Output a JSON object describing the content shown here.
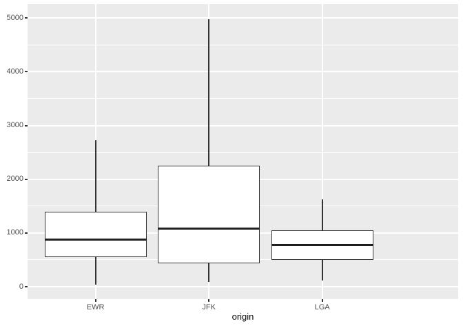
{
  "chart_data": {
    "type": "boxplot",
    "title": "",
    "xlabel": "origin",
    "ylabel": "",
    "categories": [
      "EWR",
      "JFK",
      "LGA"
    ],
    "y_ticks": [
      0,
      1000,
      2000,
      3000,
      4000,
      5000
    ],
    "y_tick_labels": [
      "0",
      "1000",
      "2000",
      "3000",
      "4000",
      "5000"
    ],
    "y_minor_ticks": [
      500,
      1500,
      2500,
      3500,
      4500
    ],
    "ylim": [
      -230,
      5260
    ],
    "grid": "on",
    "legend": "none",
    "series": [
      {
        "category": "EWR",
        "whisker_low": 40,
        "q1": 545,
        "median": 880,
        "q3": 1400,
        "whisker_high": 2720,
        "outliers": []
      },
      {
        "category": "JFK",
        "whisker_low": 94,
        "q1": 430,
        "median": 1085,
        "q3": 2250,
        "whisker_high": 4983,
        "outliers": []
      },
      {
        "category": "LGA",
        "whisker_low": 110,
        "q1": 505,
        "median": 770,
        "q3": 1045,
        "whisker_high": 1620,
        "outliers": []
      }
    ],
    "style": {
      "figure_bg": "#FFFFFF",
      "panel_bg": "#EBEBEB",
      "grid_major_color": "#FFFFFF",
      "grid_minor_color": "#FFFFFF",
      "box_fill": "#FFFFFF",
      "box_border": "#333333",
      "median_color": "#1F1F1F",
      "whisker_color": "#333333",
      "axis_text_color": "#4D4D4D",
      "axis_title_color": "#000000",
      "tick_mark_color": "#333333"
    }
  }
}
